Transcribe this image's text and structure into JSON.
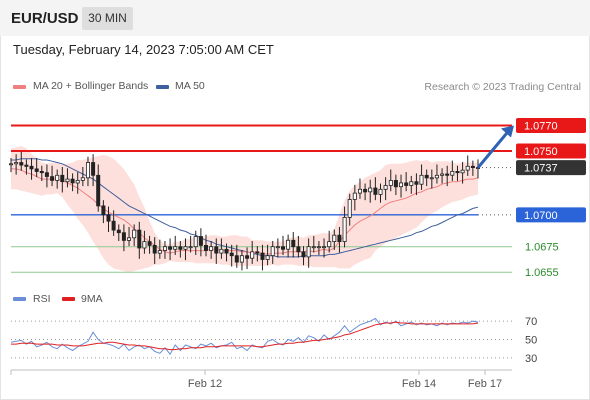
{
  "header": {
    "symbol": "EUR/USD",
    "timeframe": "30 MIN"
  },
  "datetime": "Tuesday, February 14, 2023 7:05:00 AM CET",
  "credit": "Research © 2023 Trading Central",
  "legend": {
    "ma20": {
      "label": "MA 20 + Bollinger Bands",
      "color": "#f08080"
    },
    "ma50": {
      "label": "MA 50",
      "color": "#3f5f9f"
    }
  },
  "rsi_legend": {
    "rsi": {
      "label": "RSI",
      "color": "#6a8fd8"
    },
    "ma9": {
      "label": "9MA",
      "color": "#e02020"
    }
  },
  "chart_data": [
    {
      "type": "candlestick",
      "name": "price",
      "ylim": [
        1.0645,
        1.079
      ],
      "levels": [
        {
          "value": 1.077,
          "label": "1.0770",
          "color": "#e81818",
          "style": "resistance",
          "badge": true
        },
        {
          "value": 1.075,
          "label": "1.0750",
          "color": "#e81818",
          "style": "resistance",
          "badge": true
        },
        {
          "value": 1.0737,
          "label": "1.0737",
          "color": "#333333",
          "style": "current",
          "badge": true
        },
        {
          "value": 1.07,
          "label": "1.0700",
          "color": "#2b63d8",
          "style": "pivot",
          "badge": true
        },
        {
          "value": 1.0675,
          "label": "1.0675",
          "color": "#2a8a2a",
          "style": "support",
          "badge": false
        },
        {
          "value": 1.0655,
          "label": "1.0655",
          "color": "#2a8a2a",
          "style": "support",
          "badge": false
        }
      ],
      "arrow": {
        "from": 1.0737,
        "to": 1.077
      },
      "x_ticks": [
        "Feb 12",
        "Feb 14",
        "Feb 17"
      ],
      "closes": [
        1.074,
        1.0741,
        1.0739,
        1.0738,
        1.0736,
        1.0734,
        1.0733,
        1.073,
        1.0727,
        1.0731,
        1.0726,
        1.0728,
        1.0725,
        1.0727,
        1.0729,
        1.0741,
        1.0731,
        1.0707,
        1.07,
        1.0695,
        1.0688,
        1.0686,
        1.068,
        1.0682,
        1.0688,
        1.0674,
        1.0679,
        1.0676,
        1.067,
        1.0672,
        1.0675,
        1.0673,
        1.0675,
        1.0673,
        1.0675,
        1.0675,
        1.0683,
        1.0676,
        1.0672,
        1.0675,
        1.067,
        1.0673,
        1.067,
        1.0668,
        1.0663,
        1.0668,
        1.0666,
        1.0671,
        1.067,
        1.0665,
        1.0668,
        1.0675,
        1.0675,
        1.0673,
        1.068,
        1.0675,
        1.0671,
        1.0667,
        1.0675,
        1.0675,
        1.0675,
        1.0675,
        1.0679,
        1.0684,
        1.0679,
        1.0698,
        1.0712,
        1.0717,
        1.072,
        1.0718,
        1.0721,
        1.0716,
        1.072,
        1.0723,
        1.0727,
        1.0722,
        1.0725,
        1.0723,
        1.0726,
        1.0724,
        1.0731,
        1.0729,
        1.0729,
        1.0731,
        1.0732,
        1.0731,
        1.0734,
        1.0733,
        1.0735,
        1.0738,
        1.0737,
        1.0737
      ],
      "ma20_upper": [
        1.0752,
        1.0753,
        1.0754,
        1.0752,
        1.0748,
        1.0744,
        1.0741,
        1.074,
        1.0741,
        1.0741,
        1.074,
        1.074,
        1.0741,
        1.0743,
        1.0743,
        1.0744,
        1.0745,
        1.0746,
        1.0747,
        1.0746,
        1.0744,
        1.074,
        1.0736,
        1.073,
        1.0724,
        1.0714,
        1.0706,
        1.0695,
        1.0686,
        1.068,
        1.0677,
        1.0677,
        1.0679,
        1.0679,
        1.0681,
        1.0681,
        1.0683,
        1.0683,
        1.0683,
        1.0684,
        1.0684,
        1.0683,
        1.0683,
        1.0684,
        1.0684,
        1.0683,
        1.0683,
        1.068,
        1.068,
        1.068,
        1.0679,
        1.0679,
        1.0679,
        1.0679,
        1.0682,
        1.0682,
        1.0683,
        1.0682,
        1.0684,
        1.0684,
        1.0685,
        1.0686,
        1.0685,
        1.0689,
        1.07,
        1.0711,
        1.0719,
        1.0723,
        1.0726,
        1.0729,
        1.0731,
        1.0733,
        1.0735,
        1.0739,
        1.074,
        1.074,
        1.074,
        1.0741,
        1.0742,
        1.0743,
        1.0742,
        1.0743,
        1.0741,
        1.0742,
        1.0742,
        1.0742,
        1.0741,
        1.074,
        1.0741,
        1.0741,
        1.0741,
        1.0741
      ],
      "ma20_lower": [
        1.072,
        1.072,
        1.0719,
        1.0718,
        1.0717,
        1.0716,
        1.0715,
        1.0716,
        1.0716,
        1.0717,
        1.0714,
        1.0708,
        1.0703,
        1.0697,
        1.0692,
        1.0686,
        1.0679,
        1.0673,
        1.0666,
        1.0661,
        1.0658,
        1.0657,
        1.0656,
        1.0655,
        1.0656,
        1.0657,
        1.0658,
        1.0659,
        1.0661,
        1.0661,
        1.0662,
        1.0664,
        1.0663,
        1.0663,
        1.0663,
        1.0663,
        1.0662,
        1.0662,
        1.0662,
        1.0662,
        1.0662,
        1.0661,
        1.0661,
        1.066,
        1.066,
        1.066,
        1.066,
        1.066,
        1.066,
        1.066,
        1.066,
        1.0661,
        1.066,
        1.0661,
        1.0661,
        1.0661,
        1.066,
        1.066,
        1.066,
        1.0659,
        1.0659,
        1.0659,
        1.0659,
        1.0659,
        1.0658,
        1.0658,
        1.0658,
        1.0661,
        1.0663,
        1.0665,
        1.0666,
        1.0672,
        1.0675,
        1.0678,
        1.068,
        1.0682,
        1.0684,
        1.0686,
        1.0688,
        1.069,
        1.0694,
        1.0698,
        1.0701,
        1.0703,
        1.0706,
        1.0708,
        1.071,
        1.0711,
        1.0712,
        1.0714,
        1.0715,
        1.0716
      ],
      "ma20": [
        1.0736,
        1.0736,
        1.0735,
        1.0733,
        1.0732,
        1.073,
        1.0728,
        1.0728,
        1.0728,
        1.0728,
        1.0727,
        1.0725,
        1.0723,
        1.0721,
        1.0718,
        1.0715,
        1.0712,
        1.0708,
        1.0705,
        1.0702,
        1.07,
        1.0698,
        1.0696,
        1.0693,
        1.0689,
        1.0686,
        1.0682,
        1.0679,
        1.0676,
        1.0673,
        1.0671,
        1.067,
        1.0671,
        1.0672,
        1.0672,
        1.0672,
        1.0672,
        1.0672,
        1.0672,
        1.0673,
        1.0673,
        1.0672,
        1.0672,
        1.0672,
        1.0672,
        1.0671,
        1.0671,
        1.067,
        1.067,
        1.067,
        1.0669,
        1.067,
        1.067,
        1.067,
        1.0671,
        1.0671,
        1.0671,
        1.0671,
        1.0672,
        1.0671,
        1.0672,
        1.0673,
        1.0672,
        1.0674,
        1.0679,
        1.0684,
        1.0688,
        1.0692,
        1.0695,
        1.0697,
        1.0699,
        1.0702,
        1.0705,
        1.0708,
        1.071,
        1.0711,
        1.0712,
        1.0713,
        1.0715,
        1.0717,
        1.0718,
        1.072,
        1.0721,
        1.0722,
        1.0724,
        1.0725,
        1.0726,
        1.0726,
        1.0727,
        1.0728,
        1.0728,
        1.0729
      ],
      "ma50": [
        1.0743,
        1.0743,
        1.0744,
        1.0744,
        1.0744,
        1.0744,
        1.0743,
        1.0743,
        1.0742,
        1.0741,
        1.074,
        1.0738,
        1.0736,
        1.0734,
        1.0732,
        1.073,
        1.0728,
        1.0725,
        1.0722,
        1.0719,
        1.0716,
        1.0713,
        1.071,
        1.0707,
        1.0705,
        1.0703,
        1.0701,
        1.0699,
        1.0697,
        1.0695,
        1.0693,
        1.0691,
        1.069,
        1.0688,
        1.0687,
        1.0685,
        1.0684,
        1.0682,
        1.068,
        1.0679,
        1.0677,
        1.0676,
        1.0675,
        1.0674,
        1.0673,
        1.0672,
        1.0671,
        1.067,
        1.0669,
        1.0668,
        1.0668,
        1.0668,
        1.0667,
        1.0667,
        1.0667,
        1.0667,
        1.0667,
        1.0668,
        1.0668,
        1.0668,
        1.0668,
        1.0668,
        1.0669,
        1.0669,
        1.067,
        1.0671,
        1.0672,
        1.0673,
        1.0674,
        1.0675,
        1.0676,
        1.0677,
        1.0678,
        1.0679,
        1.068,
        1.0681,
        1.0682,
        1.0683,
        1.0684,
        1.0686,
        1.0687,
        1.0689,
        1.0691,
        1.0692,
        1.0694,
        1.0696,
        1.0698,
        1.07,
        1.0701,
        1.0703,
        1.0705,
        1.0706
      ]
    },
    {
      "type": "line",
      "name": "rsi",
      "ylim": [
        20,
        80
      ],
      "levels": [
        70,
        50,
        30
      ],
      "rsi": [
        47,
        48,
        49,
        45,
        48,
        42,
        44,
        47,
        42,
        40,
        45,
        41,
        38,
        42,
        45,
        48,
        58,
        50,
        46,
        45,
        43,
        40,
        45,
        38,
        42,
        44,
        40,
        42,
        37,
        35,
        41,
        34,
        44,
        38,
        44,
        42,
        40,
        45,
        43,
        46,
        41,
        43,
        44,
        47,
        40,
        42,
        38,
        44,
        42,
        41,
        48,
        50,
        46,
        44,
        50,
        48,
        52,
        47,
        54,
        52,
        48,
        55,
        50,
        54,
        58,
        65,
        58,
        62,
        66,
        68,
        70,
        73,
        66,
        69,
        67,
        70,
        65,
        67,
        69,
        66,
        68,
        66,
        67,
        65,
        68,
        66,
        68,
        67,
        69,
        68,
        70,
        69
      ],
      "ma9": [
        45,
        45,
        46,
        46,
        46,
        45,
        45,
        45,
        45,
        44,
        44,
        44,
        43,
        43,
        43,
        44,
        45,
        46,
        46,
        47,
        47,
        46,
        45,
        44,
        44,
        43,
        43,
        42,
        41,
        40,
        40,
        39,
        39,
        40,
        40,
        41,
        41,
        41,
        42,
        42,
        42,
        43,
        43,
        43,
        43,
        43,
        43,
        43,
        42,
        42,
        43,
        44,
        45,
        45,
        46,
        46,
        47,
        47,
        48,
        49,
        49,
        50,
        51,
        52,
        53,
        55,
        56,
        58,
        60,
        62,
        64,
        66,
        67,
        68,
        68,
        69,
        68,
        68,
        67,
        67,
        67,
        67,
        67,
        67,
        67,
        67,
        67,
        67,
        67,
        67,
        67,
        68
      ]
    }
  ]
}
